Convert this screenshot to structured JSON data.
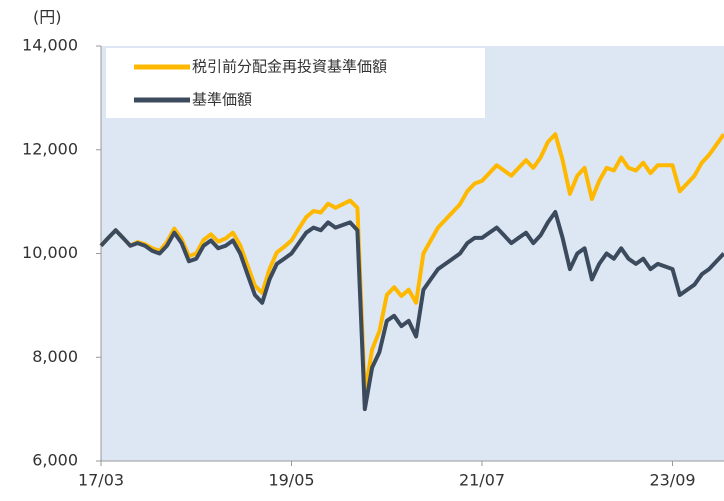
{
  "chart_data": {
    "type": "line",
    "y_unit": "(円)",
    "categories": [
      "17/03",
      null,
      null,
      null,
      null,
      null,
      null,
      null,
      null,
      null,
      null,
      null,
      null,
      null,
      null,
      null,
      null,
      null,
      null,
      null,
      null,
      null,
      null,
      null,
      null,
      null,
      "19/05",
      null,
      null,
      null,
      null,
      null,
      null,
      null,
      null,
      null,
      null,
      null,
      null,
      null,
      null,
      null,
      null,
      null,
      null,
      null,
      null,
      null,
      null,
      null,
      null,
      null,
      "21/07",
      null,
      null,
      null,
      null,
      null,
      null,
      null,
      null,
      null,
      null,
      null,
      null,
      null,
      null,
      null,
      null,
      null,
      null,
      null,
      null,
      null,
      null,
      null,
      null,
      null,
      "23/09",
      null,
      null,
      null,
      null,
      null,
      null,
      null
    ],
    "series": [
      {
        "name": "税引前分配金再投資基準価額",
        "color": "#ffb800",
        "values": [
          10150,
          10300,
          10450,
          10300,
          10150,
          10220,
          10180,
          10100,
          10050,
          10220,
          10480,
          10280,
          9950,
          10000,
          10260,
          10370,
          10230,
          10290,
          10400,
          10160,
          9770,
          9380,
          9240,
          9700,
          10020,
          10130,
          10250,
          10480,
          10700,
          10820,
          10790,
          10960,
          10880,
          10950,
          11020,
          10880,
          7300,
          8150,
          8500,
          9200,
          9350,
          9180,
          9300,
          9050,
          10000,
          10250,
          10500,
          10650,
          10800,
          10950,
          11200,
          11350,
          11400,
          11550,
          11700,
          11600,
          11500,
          11650,
          11800,
          11650,
          11850,
          12150,
          12300,
          11800,
          11150,
          11500,
          11650,
          11050,
          11400,
          11650,
          11600,
          11850,
          11650,
          11600,
          11750,
          11550,
          11700,
          11700,
          11700,
          11200,
          11350,
          11500,
          11750,
          11900,
          12100,
          12300
        ]
      },
      {
        "name": "基準価額",
        "color": "#3c4a5e",
        "values": [
          10150,
          10300,
          10450,
          10300,
          10150,
          10200,
          10150,
          10050,
          10000,
          10150,
          10400,
          10200,
          9850,
          9900,
          10150,
          10250,
          10100,
          10150,
          10250,
          10000,
          9600,
          9200,
          9050,
          9500,
          9800,
          9900,
          10000,
          10200,
          10400,
          10500,
          10450,
          10600,
          10500,
          10550,
          10600,
          10450,
          7000,
          7800,
          8100,
          8700,
          8800,
          8600,
          8700,
          8400,
          9300,
          9500,
          9700,
          9800,
          9900,
          10000,
          10200,
          10300,
          10300,
          10400,
          10500,
          10350,
          10200,
          10300,
          10400,
          10200,
          10350,
          10600,
          10800,
          10300,
          9700,
          10000,
          10100,
          9500,
          9800,
          10000,
          9900,
          10100,
          9900,
          9800,
          9900,
          9700,
          9800,
          9750,
          9700,
          9200,
          9300,
          9400,
          9600,
          9700,
          9850,
          10000
        ]
      }
    ],
    "ylim": [
      6000,
      14000
    ],
    "yticks": [
      {
        "value": 6000,
        "label": "6,000"
      },
      {
        "value": 8000,
        "label": "8,000"
      },
      {
        "value": 10000,
        "label": "10,000"
      },
      {
        "value": 12000,
        "label": "12,000"
      },
      {
        "value": 14000,
        "label": "14,000"
      }
    ],
    "plot_background": "#dce7f3",
    "legend": "upper left"
  }
}
